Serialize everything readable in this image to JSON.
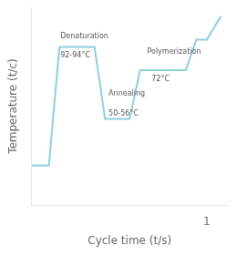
{
  "chart_data": {
    "type": "line",
    "xlabel": "Cycle time (t/s)",
    "ylabel": "Temperature (t/c)",
    "x": [
      0.0,
      0.1,
      0.16,
      0.28,
      0.36,
      0.42,
      0.5,
      0.56,
      0.62,
      0.7,
      0.76,
      0.88,
      0.94,
      1.0,
      1.08
    ],
    "values": [
      22,
      22,
      88,
      88,
      88,
      48,
      48,
      48,
      75,
      75,
      75,
      75,
      92,
      92,
      105
    ],
    "color": "#8ecfdc",
    "xlim": [
      0,
      1.12
    ],
    "ylim": [
      0,
      110
    ],
    "xticks": [
      {
        "value": 1,
        "label": "1"
      }
    ],
    "tick_labels": "x",
    "grid": false,
    "annotations": [
      {
        "text": "Denaturation",
        "x": 0.165,
        "y": 92
      },
      {
        "text": "92-94°C",
        "x": 0.165,
        "y": 85
      },
      {
        "text": "Annealing",
        "x": 0.44,
        "y": 60
      },
      {
        "text": "50-56°C",
        "x": 0.44,
        "y": 53
      },
      {
        "text": "Polymerization",
        "x": 0.66,
        "y": 83
      },
      {
        "text": "72°C",
        "x": 0.685,
        "y": 72
      }
    ]
  }
}
